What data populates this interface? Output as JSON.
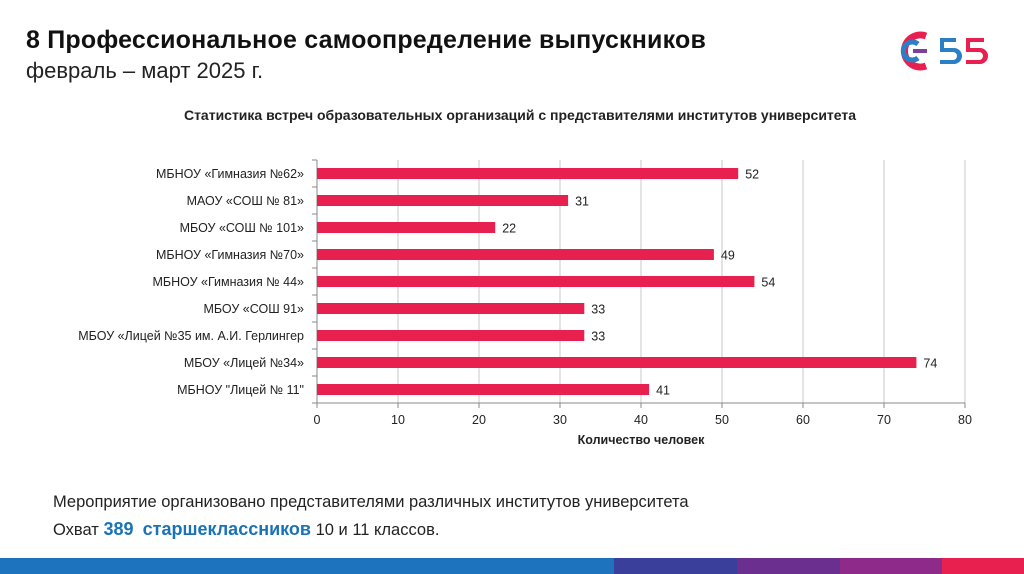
{
  "header": {
    "title": "8 Профессиональное самоопределение выпускников",
    "subtitle": "февраль – март 2025 г."
  },
  "logo": {
    "icon": "university-logo-icon",
    "colors": [
      "#e8204f",
      "#2b7fc4",
      "#7b3fa0",
      "#f39c12"
    ]
  },
  "chart_data": {
    "type": "bar",
    "orientation": "horizontal",
    "title": "Статистика встреч образовательных организаций с представителями институтов университета",
    "xlabel": "Количество человек",
    "ylabel": "",
    "categories": [
      "МБНОУ «Гимназия №62»",
      "МАОУ «СОШ № 81»",
      "МБОУ «СОШ № 101»",
      "МБНОУ «Гимназия №70»",
      "МБНОУ «Гимназия № 44»",
      "МБОУ «СОШ 91»",
      "МБОУ «Лицей №35 им. А.И. Герлингер",
      "МБОУ «Лицей №34»",
      "МБНОУ  \"Лицей № 11\""
    ],
    "values": [
      52,
      31,
      22,
      49,
      54,
      33,
      33,
      74,
      41
    ],
    "xlim": [
      0,
      80
    ],
    "xticks": [
      0,
      10,
      20,
      30,
      40,
      50,
      60,
      70,
      80
    ],
    "grid": true,
    "bar_color": "#e8204f"
  },
  "note": {
    "line1": "Мероприятие организовано представителями различных институтов университета",
    "prefix": "Охват",
    "count": "389",
    "highlight": "старшеклассников",
    "suffix": "10 и 11 классов."
  },
  "footer": {
    "stripe_colors": [
      "#1e73be",
      "#1e73be",
      "#3b3f9c",
      "#6b2f8f",
      "#8e2a8a",
      "#e8204f"
    ]
  }
}
